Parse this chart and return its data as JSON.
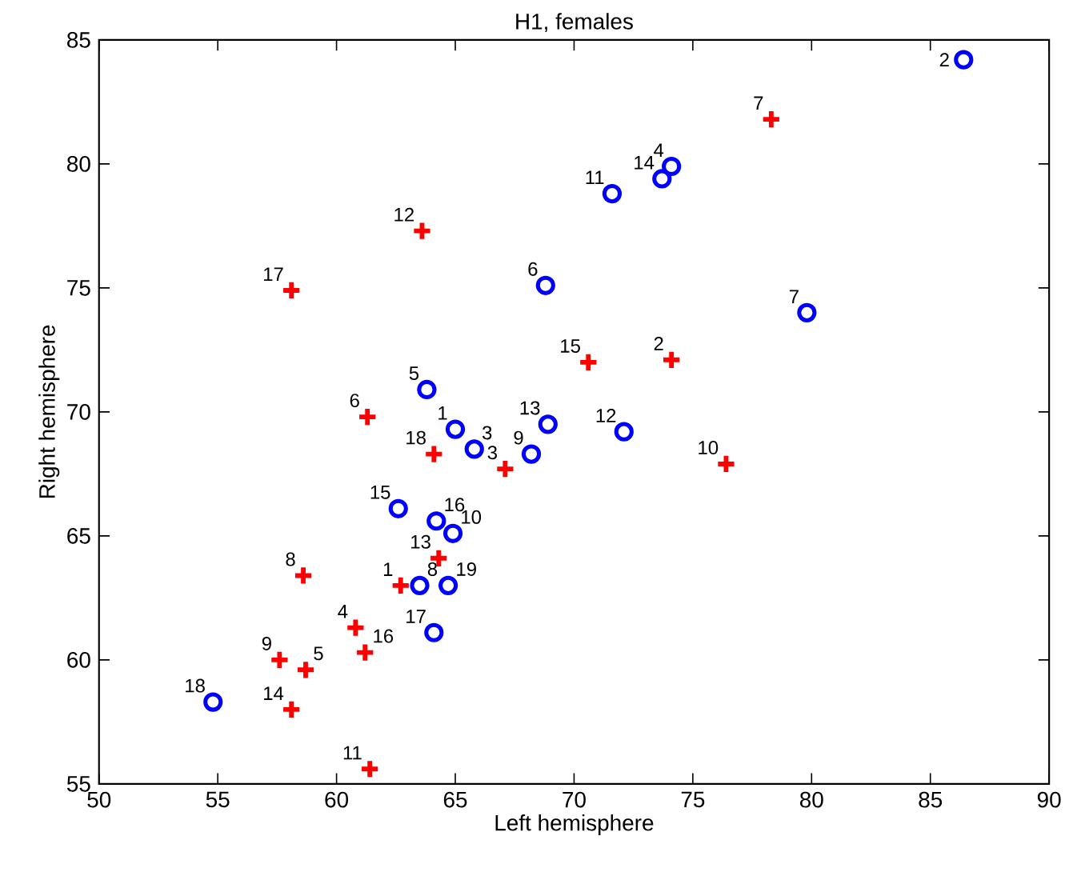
{
  "chart_data": {
    "type": "scatter",
    "title": "H1, females",
    "xlabel": "Left hemisphere",
    "ylabel": "Right hemisphere",
    "xlim": [
      50,
      90
    ],
    "ylim": [
      55,
      85
    ],
    "xticks": [
      50,
      55,
      60,
      65,
      70,
      75,
      80,
      85,
      90
    ],
    "yticks": [
      55,
      60,
      65,
      70,
      75,
      80,
      85
    ],
    "grid": false,
    "series": [
      {
        "color": "#ff0000",
        "marker": "cross",
        "x": [
          62.7,
          74.1,
          67.1,
          60.8,
          58.7,
          61.3,
          78.3,
          58.6,
          57.6,
          76.4,
          61.4,
          63.6,
          64.3,
          58.1,
          70.6,
          61.2,
          58.1,
          64.1
        ],
        "values": [
          63.0,
          72.1,
          67.7,
          61.3,
          59.6,
          69.8,
          81.8,
          63.4,
          60.0,
          67.9,
          55.6,
          77.3,
          64.1,
          58.0,
          72.0,
          60.3,
          74.9,
          68.3
        ]
      },
      {
        "color": "#0000ff",
        "marker": "circle",
        "x": [
          65.0,
          86.4,
          65.8,
          74.1,
          63.8,
          68.8,
          79.8,
          63.5,
          68.2,
          64.9,
          71.6,
          72.1,
          68.9,
          73.7,
          62.6,
          64.2,
          64.1,
          54.8,
          64.7
        ],
        "values": [
          69.3,
          84.2,
          68.5,
          79.9,
          70.9,
          75.1,
          74.0,
          63.0,
          68.3,
          65.1,
          78.8,
          69.2,
          69.5,
          79.4,
          66.1,
          65.6,
          61.1,
          58.3,
          63.0
        ]
      }
    ],
    "annotations": [
      {
        "text": "1",
        "x": 62.7,
        "y": 63.0
      },
      {
        "text": "2",
        "x": 74.1,
        "y": 72.1
      },
      {
        "text": "3",
        "x": 67.1,
        "y": 67.7
      },
      {
        "text": "4",
        "x": 60.8,
        "y": 61.3
      },
      {
        "text": "5",
        "x": 58.7,
        "y": 59.6
      },
      {
        "text": "6",
        "x": 61.3,
        "y": 69.8
      },
      {
        "text": "7",
        "x": 78.3,
        "y": 81.8
      },
      {
        "text": "8",
        "x": 58.6,
        "y": 63.4
      },
      {
        "text": "9",
        "x": 57.6,
        "y": 60.0
      },
      {
        "text": "10",
        "x": 76.4,
        "y": 67.9
      },
      {
        "text": "11",
        "x": 61.4,
        "y": 55.6
      },
      {
        "text": "12",
        "x": 63.6,
        "y": 77.3
      },
      {
        "text": "13",
        "x": 64.3,
        "y": 64.1
      },
      {
        "text": "14",
        "x": 58.1,
        "y": 58.0
      },
      {
        "text": "15",
        "x": 70.6,
        "y": 72.0
      },
      {
        "text": "16",
        "x": 61.2,
        "y": 60.3
      },
      {
        "text": "17",
        "x": 58.1,
        "y": 74.9
      },
      {
        "text": "18",
        "x": 64.1,
        "y": 68.3
      },
      {
        "text": "1",
        "x": 65.0,
        "y": 69.3
      },
      {
        "text": "2",
        "x": 86.4,
        "y": 84.2
      },
      {
        "text": "3",
        "x": 65.8,
        "y": 68.5
      },
      {
        "text": "4",
        "x": 74.1,
        "y": 79.9
      },
      {
        "text": "5",
        "x": 63.8,
        "y": 70.9
      },
      {
        "text": "6",
        "x": 68.8,
        "y": 75.1
      },
      {
        "text": "7",
        "x": 79.8,
        "y": 74.0
      },
      {
        "text": "8",
        "x": 63.5,
        "y": 63.0
      },
      {
        "text": "9",
        "x": 68.2,
        "y": 68.3
      },
      {
        "text": "10",
        "x": 64.9,
        "y": 65.1
      },
      {
        "text": "11",
        "x": 71.6,
        "y": 78.8
      },
      {
        "text": "12",
        "x": 72.1,
        "y": 69.2
      },
      {
        "text": "13",
        "x": 68.9,
        "y": 69.5
      },
      {
        "text": "14",
        "x": 73.7,
        "y": 79.4
      },
      {
        "text": "15",
        "x": 62.6,
        "y": 66.1
      },
      {
        "text": "16",
        "x": 64.2,
        "y": 65.6
      },
      {
        "text": "17",
        "x": 64.1,
        "y": 61.1
      },
      {
        "text": "18",
        "x": 54.8,
        "y": 58.3
      },
      {
        "text": "19",
        "x": 64.7,
        "y": 63.0
      }
    ]
  }
}
